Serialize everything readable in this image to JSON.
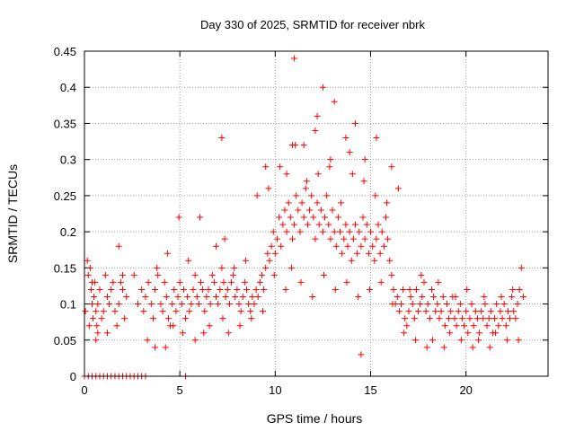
{
  "chart_data": {
    "type": "scatter",
    "title": "Day 330 of 2025, SRMTID for receiver nbrk",
    "xlabel": "GPS time / hours",
    "ylabel": "SRMTID / TECUs",
    "xlim": [
      0,
      24.3
    ],
    "ylim": [
      0,
      0.45
    ],
    "xticks": [
      0,
      5,
      10,
      15,
      20
    ],
    "yticks": [
      0,
      0.05,
      0.1,
      0.15,
      0.2,
      0.25,
      0.3,
      0.35,
      0.4,
      0.45
    ],
    "xtick_labels": [
      "0",
      "5",
      "10",
      "15",
      "20"
    ],
    "ytick_labels": [
      "0",
      "0.05",
      "0.1",
      "0.15",
      "0.2",
      "0.25",
      "0.3",
      "0.35",
      "0.4",
      "0.45"
    ],
    "grid": true,
    "marker": "+",
    "color": "#ff0000",
    "series": [
      {
        "name": "SRMTID",
        "x": [
          0.05,
          0.15,
          0.2,
          0.3,
          0.35,
          0.4,
          0.45,
          0.5,
          0.55,
          0.6,
          0.65,
          0.7,
          0.8,
          0.9,
          1.0,
          1.1,
          1.2,
          1.3,
          1.4,
          1.5,
          1.6,
          1.7,
          1.8,
          1.9,
          2.0,
          2.1,
          2.2,
          2.6,
          2.8,
          3.0,
          3.1,
          3.2,
          3.35,
          3.5,
          3.6,
          3.7,
          3.85,
          4.0,
          4.1,
          4.2,
          4.3,
          4.4,
          4.5,
          4.6,
          4.7,
          4.8,
          4.9,
          5.0,
          5.1,
          5.2,
          5.3,
          5.4,
          5.5,
          5.6,
          5.7,
          5.8,
          5.9,
          6.0,
          6.1,
          6.2,
          6.3,
          6.4,
          6.5,
          6.6,
          6.7,
          6.8,
          6.9,
          7.0,
          7.1,
          7.2,
          7.3,
          7.4,
          7.5,
          7.6,
          7.7,
          7.8,
          7.9,
          8.0,
          8.1,
          8.2,
          8.3,
          8.4,
          8.5,
          8.6,
          8.7,
          8.8,
          8.9,
          9.0,
          9.1,
          9.2,
          9.3,
          9.4,
          9.5,
          9.6,
          9.7,
          9.8,
          9.9,
          10.0,
          10.1,
          10.2,
          10.3,
          10.4,
          10.5,
          10.6,
          10.7,
          10.8,
          10.9,
          11.0,
          11.1,
          11.2,
          11.3,
          11.4,
          11.5,
          11.6,
          11.7,
          11.8,
          11.9,
          12.0,
          12.1,
          12.2,
          12.3,
          12.4,
          12.5,
          12.6,
          12.7,
          12.8,
          12.9,
          13.0,
          13.1,
          13.2,
          13.3,
          13.4,
          13.5,
          13.6,
          13.7,
          13.8,
          13.9,
          14.0,
          14.1,
          14.2,
          14.3,
          14.4,
          14.5,
          14.6,
          14.7,
          14.8,
          14.9,
          15.0,
          15.1,
          15.2,
          15.3,
          15.4,
          15.5,
          15.6,
          15.7,
          15.8,
          15.9,
          16.0,
          16.1,
          16.2,
          16.3,
          16.4,
          16.5,
          16.6,
          16.7,
          16.8,
          16.9,
          17.0,
          17.1,
          17.2,
          17.3,
          17.4,
          17.5,
          17.6,
          17.7,
          17.8,
          17.9,
          18.0,
          18.1,
          18.2,
          18.3,
          18.4,
          18.5,
          18.6,
          18.7,
          18.8,
          18.9,
          19.0,
          19.1,
          19.2,
          19.3,
          19.4,
          19.5,
          19.6,
          19.7,
          19.8,
          19.9,
          20.0,
          20.1,
          20.2,
          20.3,
          20.4,
          20.5,
          20.6,
          20.7,
          20.8,
          20.9,
          21.0,
          21.1,
          21.2,
          21.3,
          21.4,
          21.5,
          21.6,
          21.7,
          21.8,
          21.9,
          22.0,
          22.1,
          22.2,
          22.3,
          22.4,
          22.5,
          22.6,
          22.7,
          22.8,
          22.9,
          23.0,
          0.25,
          0.6,
          1.2,
          1.8,
          3.3,
          3.8,
          4.25,
          4.65,
          5.15,
          5.45,
          5.8,
          6.25,
          6.55,
          6.9,
          7.25,
          7.55,
          7.85,
          8.15,
          8.45,
          8.75,
          9.05,
          9.35,
          9.65,
          9.95,
          10.25,
          10.55,
          10.85,
          11.05,
          11.35,
          11.65,
          11.95,
          12.25,
          12.55,
          12.85,
          13.15,
          13.45,
          13.75,
          14.05,
          14.35,
          14.65,
          14.95,
          15.25,
          15.55,
          15.85,
          16.15,
          16.45,
          16.75,
          17.05,
          17.35,
          17.65,
          17.95,
          18.25,
          18.55,
          18.85,
          19.15,
          19.45,
          19.75,
          20.05,
          20.35,
          20.65,
          20.95,
          21.25,
          21.55,
          21.85,
          22.15,
          22.45,
          22.75,
          0.4,
          0.7,
          2.0,
          3.7,
          4.35,
          4.95,
          6.05,
          7.35,
          7.2,
          10.9,
          11.0,
          12.2,
          12.5,
          13.1,
          13.7,
          14.7,
          15.3,
          16.1,
          9.5,
          10.6,
          11.5,
          12.1,
          12.9,
          13.9,
          14.2,
          14.5,
          0.0,
          0.2,
          0.4,
          0.6,
          0.8,
          1.0,
          1.2,
          1.4,
          1.6,
          1.8,
          2.0,
          2.2,
          2.4,
          2.6,
          2.8,
          3.0,
          3.2,
          5.3
        ],
        "y": [
          0.09,
          0.16,
          0.14,
          0.15,
          0.12,
          0.1,
          0.08,
          0.11,
          0.13,
          0.09,
          0.07,
          0.1,
          0.12,
          0.08,
          0.09,
          0.14,
          0.11,
          0.1,
          0.12,
          0.13,
          0.09,
          0.07,
          0.1,
          0.13,
          0.12,
          0.08,
          0.11,
          0.14,
          0.1,
          0.12,
          0.09,
          0.11,
          0.13,
          0.1,
          0.08,
          0.12,
          0.14,
          0.1,
          0.09,
          0.13,
          0.11,
          0.08,
          0.07,
          0.1,
          0.12,
          0.09,
          0.11,
          0.13,
          0.1,
          0.12,
          0.08,
          0.11,
          0.09,
          0.1,
          0.12,
          0.14,
          0.11,
          0.1,
          0.13,
          0.12,
          0.09,
          0.11,
          0.12,
          0.1,
          0.14,
          0.13,
          0.11,
          0.1,
          0.12,
          0.15,
          0.13,
          0.11,
          0.12,
          0.1,
          0.13,
          0.14,
          0.11,
          0.12,
          0.1,
          0.09,
          0.11,
          0.13,
          0.12,
          0.1,
          0.09,
          0.11,
          0.1,
          0.12,
          0.11,
          0.13,
          0.14,
          0.12,
          0.15,
          0.17,
          0.16,
          0.18,
          0.2,
          0.17,
          0.19,
          0.22,
          0.18,
          0.21,
          0.23,
          0.2,
          0.24,
          0.22,
          0.19,
          0.21,
          0.25,
          0.23,
          0.2,
          0.24,
          0.22,
          0.26,
          0.21,
          0.23,
          0.25,
          0.22,
          0.19,
          0.24,
          0.21,
          0.23,
          0.2,
          0.22,
          0.25,
          0.21,
          0.19,
          0.23,
          0.2,
          0.18,
          0.22,
          0.2,
          0.17,
          0.19,
          0.21,
          0.18,
          0.2,
          0.16,
          0.19,
          0.21,
          0.17,
          0.2,
          0.18,
          0.22,
          0.19,
          0.21,
          0.17,
          0.2,
          0.18,
          0.16,
          0.19,
          0.21,
          0.17,
          0.2,
          0.18,
          0.22,
          0.19,
          0.16,
          0.14,
          0.12,
          0.1,
          0.11,
          0.09,
          0.1,
          0.12,
          0.08,
          0.07,
          0.09,
          0.11,
          0.1,
          0.08,
          0.12,
          0.09,
          0.1,
          0.11,
          0.13,
          0.09,
          0.1,
          0.08,
          0.12,
          0.11,
          0.09,
          0.1,
          0.08,
          0.09,
          0.11,
          0.07,
          0.1,
          0.08,
          0.09,
          0.11,
          0.08,
          0.07,
          0.09,
          0.1,
          0.08,
          0.07,
          0.09,
          0.06,
          0.08,
          0.1,
          0.07,
          0.09,
          0.08,
          0.06,
          0.09,
          0.08,
          0.1,
          0.07,
          0.08,
          0.09,
          0.06,
          0.08,
          0.1,
          0.07,
          0.09,
          0.08,
          0.1,
          0.07,
          0.09,
          0.08,
          0.11,
          0.09,
          0.08,
          0.1,
          0.12,
          0.15,
          0.11,
          0.07,
          0.05,
          0.06,
          0.18,
          0.05,
          0.15,
          0.04,
          0.07,
          0.06,
          0.16,
          0.05,
          0.06,
          0.07,
          0.18,
          0.08,
          0.06,
          0.15,
          0.07,
          0.16,
          0.08,
          0.25,
          0.09,
          0.26,
          0.14,
          0.29,
          0.12,
          0.15,
          0.32,
          0.13,
          0.27,
          0.11,
          0.28,
          0.14,
          0.29,
          0.12,
          0.24,
          0.13,
          0.28,
          0.11,
          0.27,
          0.12,
          0.25,
          0.13,
          0.24,
          0.1,
          0.26,
          0.06,
          0.12,
          0.05,
          0.14,
          0.04,
          0.05,
          0.13,
          0.04,
          0.06,
          0.11,
          0.05,
          0.12,
          0.04,
          0.05,
          0.11,
          0.04,
          0.06,
          0.11,
          0.05,
          0.12,
          0.05,
          0.13,
          0.06,
          0.14,
          0.04,
          0.17,
          0.22,
          0.22,
          0.19,
          0.33,
          0.32,
          0.44,
          0.36,
          0.4,
          0.38,
          0.33,
          0.3,
          0.33,
          0.29,
          0.29,
          0.28,
          0.32,
          0.34,
          0.3,
          0.31,
          0.35,
          0.03,
          0.0,
          0.0,
          0.0,
          0.0,
          0.0,
          0.0,
          0.0,
          0.0,
          0.0,
          0.0,
          0.0,
          0.0,
          0.0,
          0.0,
          0.0,
          0.0,
          0.0,
          0.0
        ]
      }
    ]
  }
}
